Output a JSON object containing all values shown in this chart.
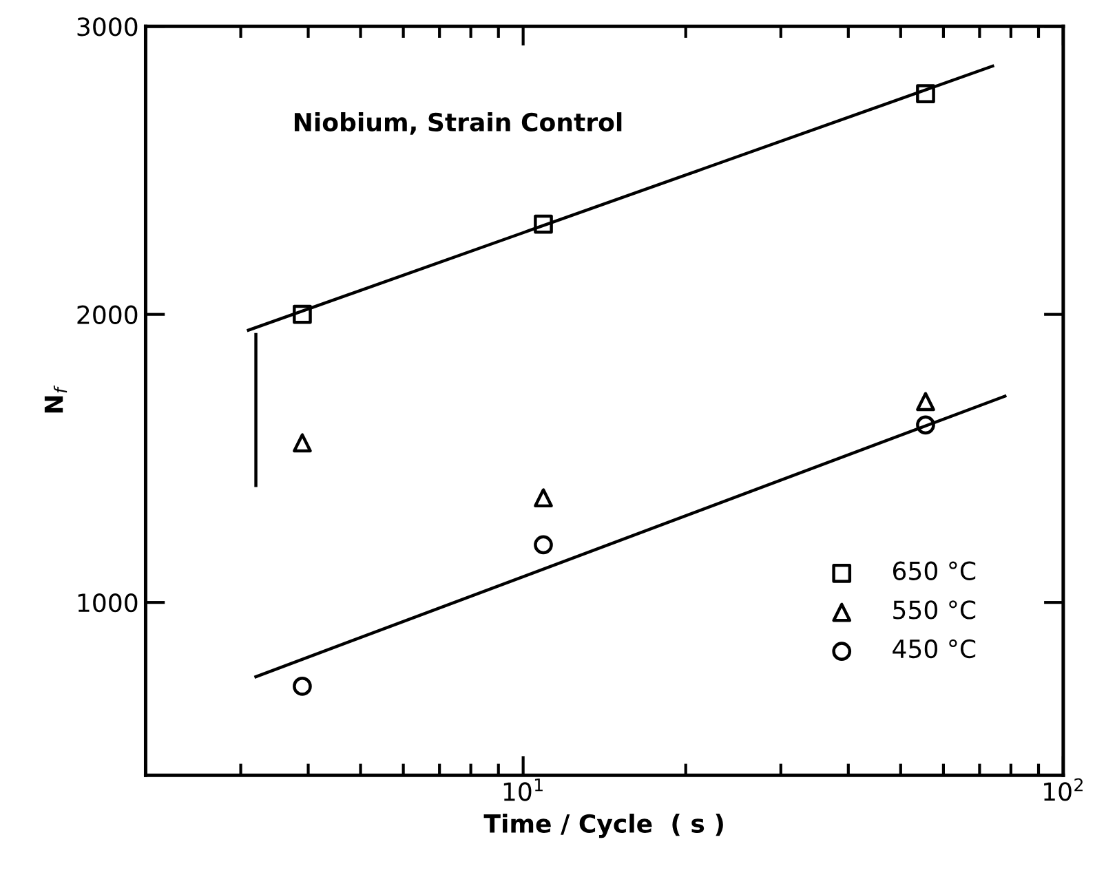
{
  "chart_data": {
    "type": "scatter",
    "xlabel": "Time / Cycle  ( s )",
    "ylabel": "N$_{f}$",
    "annotations": [
      "Niobium, Strain Control"
    ],
    "log": "x",
    "xlim": [
      2,
      100
    ],
    "xticks": [
      {
        "value": 10,
        "label": "10$^{1}$"
      },
      {
        "value": 100,
        "label": "10$^{2}$"
      }
    ],
    "ylim": [
      400,
      3000
    ],
    "yticks": [
      1000,
      2000,
      3000
    ],
    "grid": false,
    "legend": "bottom right",
    "series": [
      {
        "name": "650 °C",
        "marker": "square",
        "color": "#000000",
        "x": [
          3.9,
          10.9,
          55.6
        ],
        "values": [
          2000,
          2313,
          2766
        ]
      },
      {
        "name": "550 °C",
        "marker": "triangle",
        "color": "#000000",
        "x": [
          3.9,
          10.9,
          55.6
        ],
        "values": [
          1554,
          1363,
          1697
        ]
      },
      {
        "name": "450 °C",
        "marker": "circle",
        "color": "#000000",
        "x": [
          3.9,
          10.9,
          55.6
        ],
        "values": [
          709,
          1200,
          1616
        ]
      },
      {
        "type": "line",
        "color": "#000000",
        "x": [
          3.1,
          74
        ],
        "values": [
          1945,
          2862
        ]
      },
      {
        "type": "line",
        "color": "#000000",
        "x": [
          3.2,
          78
        ],
        "values": [
          742,
          1716
        ]
      },
      {
        "type": "line",
        "color": "#000000",
        "x": [
          3.2,
          3.2
        ],
        "values": [
          1930,
          1406
        ]
      }
    ]
  }
}
